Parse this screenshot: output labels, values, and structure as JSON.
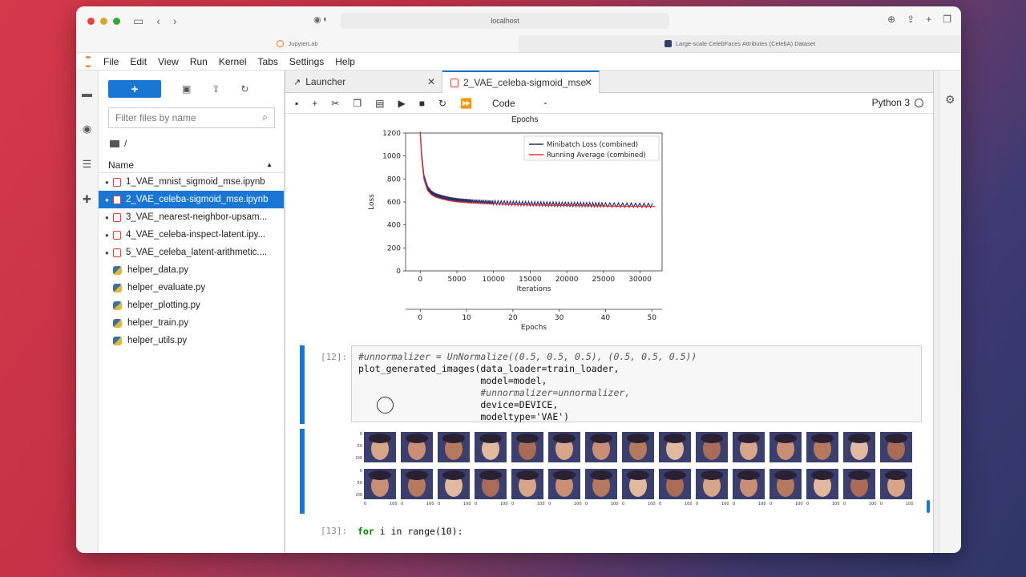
{
  "browser": {
    "url": "localhost",
    "tabs": [
      {
        "label": "JupyterLab",
        "active": true
      },
      {
        "label": "Large-scale CelebFaces Attributes (CelebA) Dataset",
        "active": false
      }
    ]
  },
  "menu": [
    "File",
    "Edit",
    "View",
    "Run",
    "Kernel",
    "Tabs",
    "Settings",
    "Help"
  ],
  "filebrowser": {
    "new_label": "+",
    "filter_placeholder": "Filter files by name",
    "path": "/",
    "column_name": "Name",
    "files": [
      {
        "name": "1_VAE_mnist_sigmoid_mse.ipynb",
        "type": "notebook",
        "running": true,
        "selected": false
      },
      {
        "name": "2_VAE_celeba-sigmoid_mse.ipynb",
        "type": "notebook",
        "running": true,
        "selected": true
      },
      {
        "name": "3_VAE_nearest-neighbor-upsam...",
        "type": "notebook",
        "running": true,
        "selected": false
      },
      {
        "name": "4_VAE_celeba-inspect-latent.ipy...",
        "type": "notebook",
        "running": true,
        "selected": false
      },
      {
        "name": "5_VAE_celeba_latent-arithmetic....",
        "type": "notebook",
        "running": true,
        "selected": false
      },
      {
        "name": "helper_data.py",
        "type": "python",
        "running": false,
        "selected": false
      },
      {
        "name": "helper_evaluate.py",
        "type": "python",
        "running": false,
        "selected": false
      },
      {
        "name": "helper_plotting.py",
        "type": "python",
        "running": false,
        "selected": false
      },
      {
        "name": "helper_train.py",
        "type": "python",
        "running": false,
        "selected": false
      },
      {
        "name": "helper_utils.py",
        "type": "python",
        "running": false,
        "selected": false
      }
    ]
  },
  "doc_tabs": [
    {
      "label": "Launcher",
      "active": false
    },
    {
      "label": "2_VAE_celeba-sigmoid_mse",
      "active": true
    }
  ],
  "toolbar": {
    "cell_type": "Code",
    "kernel": "Python 3"
  },
  "notebook": {
    "top_axis_label": "Epochs",
    "cell12": {
      "prompt": "[12]:",
      "lines": [
        "#unnormalizer = UnNormalize((0.5, 0.5, 0.5), (0.5, 0.5, 0.5))",
        "plot_generated_images(data_loader=train_loader,",
        "                      model=model,",
        "                      #unnormalizer=unnormalizer,",
        "                      device=DEVICE,",
        "                      modeltype='VAE')"
      ]
    },
    "cell13": {
      "prompt": "[13]:",
      "line": "for i in range(10):"
    },
    "face_grid": {
      "rows": 2,
      "cols": 15,
      "y_ticks": [
        "0",
        "50",
        "100"
      ],
      "x_ticks": [
        "0",
        "100"
      ]
    }
  },
  "chart_data": {
    "type": "line",
    "xlabel": "Iterations",
    "ylabel": "Loss",
    "secondary_xlabel": "Epochs",
    "xlim": [
      -2000,
      33000
    ],
    "ylim": [
      0,
      1200
    ],
    "x_ticks": [
      0,
      5000,
      10000,
      15000,
      20000,
      25000,
      30000
    ],
    "y_ticks": [
      0,
      200,
      400,
      600,
      800,
      1000,
      1200
    ],
    "secondary_x_ticks": [
      0,
      10,
      20,
      30,
      40,
      50
    ],
    "legend_position": "top-right",
    "series": [
      {
        "name": "Minibatch Loss (combined)",
        "color": "#2b2f6b",
        "x": [
          0,
          200,
          500,
          1000,
          1500,
          2000,
          3000,
          4000,
          5000,
          7000,
          10000,
          15000,
          20000,
          25000,
          32000
        ],
        "values": [
          1200,
          1000,
          820,
          720,
          680,
          660,
          640,
          625,
          615,
          605,
          595,
          585,
          580,
          575,
          570
        ]
      },
      {
        "name": "Running Average (combined)",
        "color": "#e8302c",
        "x": [
          0,
          200,
          500,
          1000,
          1500,
          2000,
          3000,
          4000,
          5000,
          7000,
          10000,
          15000,
          20000,
          25000,
          32000
        ],
        "values": [
          1200,
          980,
          800,
          700,
          665,
          645,
          625,
          612,
          602,
          592,
          583,
          574,
          568,
          564,
          560
        ]
      }
    ]
  }
}
